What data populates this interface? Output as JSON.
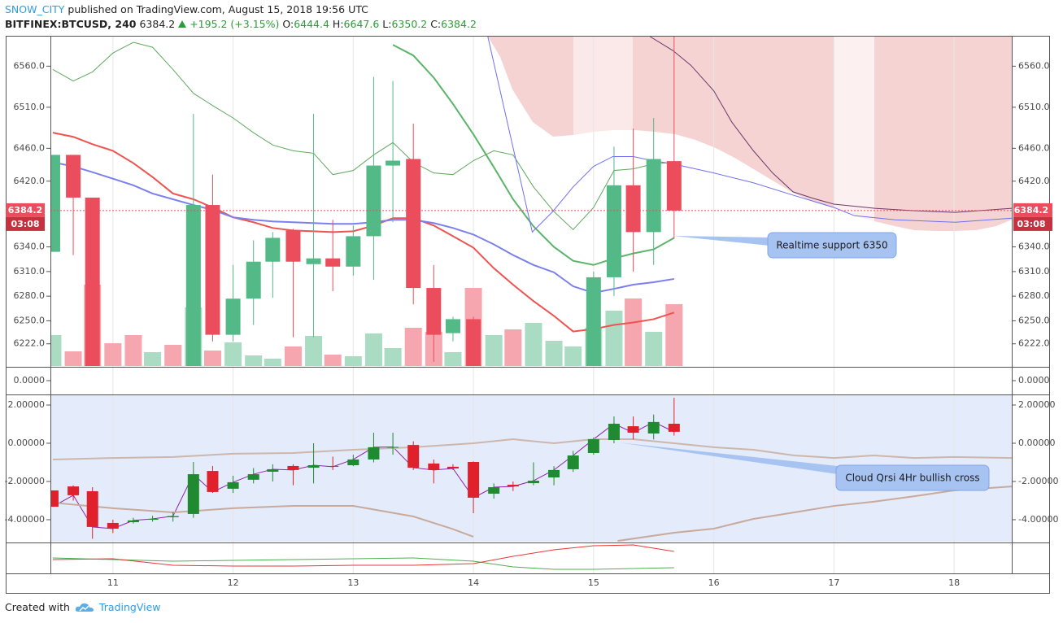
{
  "header": {
    "author": "SNOW_CITY",
    "published": "published on TradingView.com, August 15, 2018 19:56 UTC",
    "symbol": "BITFINEX:BTCUSD, 240",
    "last": "6384.2",
    "change": "+195.2 (+3.15%)",
    "o_label": "O:",
    "o": "6444.4",
    "h_label": "H:",
    "h": "6647.6",
    "l_label": "L:",
    "l": "6350.2",
    "c_label": "C:",
    "c": "6384.2"
  },
  "chart_data": [
    {
      "type": "candlestick",
      "x": [
        10.5,
        10.67,
        10.83,
        11,
        11.17,
        11.33,
        11.5,
        11.67,
        11.83,
        12,
        12.17,
        12.33,
        12.5,
        12.67,
        12.83,
        13,
        13.17,
        13.33,
        13.5,
        13.67,
        13.83,
        14,
        14.17,
        14.33,
        14.5,
        14.67,
        14.83,
        15,
        15.17,
        15.33,
        15.5,
        15.67
      ],
      "open": [
        6334,
        6452,
        6400,
        null,
        null,
        null,
        null,
        6190,
        6391,
        6233,
        6277,
        6322,
        6360,
        6319,
        6326,
        6316,
        6353,
        6439,
        6447,
        6290,
        6235,
        6252,
        null,
        null,
        null,
        null,
        null,
        6190,
        6303,
        6415,
        6358,
        6444.4
      ],
      "high": [
        6452,
        6452,
        6400,
        null,
        null,
        null,
        null,
        6502,
        6428,
        6318,
        6348,
        6358,
        6362,
        6502,
        6373,
        6366,
        6547,
        6542,
        6490,
        6318,
        6255,
        6255,
        null,
        null,
        null,
        null,
        null,
        6310,
        6462,
        6484,
        6497,
        6647.6
      ],
      "low": [
        6334,
        6330,
        6180,
        null,
        null,
        null,
        null,
        6180,
        6225,
        6225,
        6245,
        6278,
        6230,
        6230,
        6286,
        6305,
        6300,
        6370,
        6270,
        6200,
        6225,
        6180,
        null,
        null,
        null,
        null,
        null,
        6180,
        6280,
        6310,
        6318,
        6350.2
      ],
      "close": [
        6452,
        6400,
        6190,
        null,
        null,
        null,
        null,
        6391,
        6233,
        6277,
        6322,
        6351,
        6322,
        6326,
        6316,
        6353,
        6439,
        6445,
        6290,
        6233,
        6252,
        6190,
        null,
        null,
        null,
        null,
        null,
        6303,
        6415,
        6358,
        6447,
        6384.2
      ],
      "up_color": "#53b987",
      "down_color": "#eb4d5c",
      "volume": {
        "values": [
          38,
          18,
          100,
          28,
          38,
          17,
          26,
          72,
          19,
          29,
          13,
          9,
          24,
          37,
          14,
          12,
          40,
          22,
          47,
          42,
          17,
          96,
          38,
          45,
          53,
          31,
          24,
          47,
          68,
          83,
          42,
          76
        ],
        "colors": [
          "#a9dcc3",
          "#f5a6ae",
          "#f5a6ae",
          "#f5a6ae",
          "#f5a6ae",
          "#a9dcc3",
          "#f5a6ae",
          "#a9dcc3",
          "#f5a6ae",
          "#a9dcc3",
          "#a9dcc3",
          "#a9dcc3",
          "#f5a6ae",
          "#a9dcc3",
          "#f5a6ae",
          "#a9dcc3",
          "#a9dcc3",
          "#a9dcc3",
          "#f5a6ae",
          "#f5a6ae",
          "#a9dcc3",
          "#f5a6ae",
          "#a9dcc3",
          "#f5a6ae",
          "#a9dcc3",
          "#a9dcc3",
          "#a9dcc3",
          "#a9dcc3",
          "#a9dcc3",
          "#f5a6ae",
          "#a9dcc3",
          "#f5a6ae"
        ]
      },
      "lines": [
        {
          "color": "#ef5350",
          "width": 2,
          "values": [
            6479,
            6474,
            6465,
            6457,
            6442,
            6425,
            6405,
            6398,
            6388,
            6376,
            6370,
            6363,
            6360,
            6359,
            6358,
            6359,
            6366,
            6375,
            6375,
            6366,
            6353,
            6339,
            6314,
            6294,
            6274,
            6256,
            6237,
            6240,
            6245,
            6248,
            6252,
            6260
          ]
        },
        {
          "color": "#7b7ff0",
          "width": 2,
          "values": [
            6443,
            6438,
            6431,
            6423,
            6415,
            6405,
            6398,
            6391,
            6385,
            6376,
            6373,
            6371,
            6370,
            6369,
            6368,
            6368,
            6370,
            6373,
            6373,
            6369,
            6363,
            6355,
            6343,
            6330,
            6318,
            6309,
            6292,
            6284,
            6289,
            6294,
            6297,
            6301
          ]
        },
        {
          "color": "#5cb46a",
          "width": 2,
          "values": [
            null,
            null,
            null,
            null,
            null,
            null,
            null,
            null,
            null,
            null,
            null,
            null,
            null,
            null,
            null,
            null,
            null,
            6586,
            6573,
            6546,
            6514,
            6477,
            6437,
            6398,
            6365,
            6340,
            6323,
            6318,
            6326,
            6332,
            6337,
            6351
          ]
        },
        {
          "color": "#5fa85f",
          "width": 1,
          "values": [
            6556,
            6542,
            6553,
            6576,
            6589,
            6583,
            6556,
            6527,
            6512,
            6497,
            6479,
            6464,
            6457,
            6454,
            6428,
            6433,
            6452,
            6467,
            6443,
            6430,
            6428,
            6445,
            6457,
            6452,
            6413,
            6383,
            6361,
            6388,
            6433,
            6435,
            6441,
            6443
          ]
        },
        {
          "color": "#6f6ff5",
          "width": 1,
          "x": [
            14.12,
            14.49,
            14.66,
            14.83,
            15,
            15.16,
            15.33,
            15.49,
            15.66,
            16,
            16.33,
            16.66,
            17,
            17.17,
            17.51,
            18.01,
            18.48
          ],
          "values": [
            6596,
            6358,
            6383,
            6413,
            6438,
            6450,
            6450,
            6445,
            6441,
            6430,
            6418,
            6403,
            6388,
            6378,
            6373,
            6370,
            6375
          ]
        },
        {
          "color": "#6b3a6b",
          "width": 1,
          "x": [
            15.47,
            15.66,
            15.81,
            16,
            16.15,
            16.33,
            16.49,
            16.66,
            16.83,
            17,
            17.34,
            17.67,
            18.01,
            18.48
          ],
          "values": [
            6596,
            6579,
            6561,
            6530,
            6492,
            6457,
            6430,
            6407,
            6399,
            6392,
            6387,
            6384,
            6382,
            6387
          ]
        }
      ],
      "xlim": [
        10.48,
        18.48
      ],
      "xticks": [
        11,
        12,
        13,
        14,
        15,
        16,
        17,
        18
      ],
      "xgrid": true,
      "ylim": [
        6195,
        6596
      ],
      "yticks": [
        {
          "value": 6222,
          "label": "6222.0"
        },
        {
          "value": 6250,
          "label": "6250.0"
        },
        {
          "value": 6280,
          "label": "6280.0"
        },
        {
          "value": 6310,
          "label": "6310.0"
        },
        {
          "value": 6340,
          "label": "6340.0"
        },
        {
          "value": 6420,
          "label": "6420.0"
        },
        {
          "value": 6460,
          "label": "6460.0"
        },
        {
          "value": 6510,
          "label": "6510.0"
        },
        {
          "value": 6560,
          "label": "6560.0"
        }
      ],
      "last_price": 6384.2,
      "countdown": "03:08",
      "last_color": "#eb4d5c",
      "annotation": "Realtime support 6350"
    },
    {
      "type": "indicator",
      "ylim": [
        -1,
        1
      ],
      "yticks": [
        {
          "value": 0,
          "label": "0.0000"
        }
      ]
    },
    {
      "type": "candlestick",
      "x": [
        10.5,
        10.67,
        10.83,
        11,
        11.17,
        11.33,
        11.5,
        11.67,
        11.83,
        12,
        12.17,
        12.33,
        12.5,
        12.67,
        12.83,
        13,
        13.17,
        13.33,
        13.5,
        13.67,
        13.83,
        14,
        14.17,
        14.33,
        14.5,
        14.67,
        14.83,
        15,
        15.17,
        15.33,
        15.5,
        15.67
      ],
      "open": [
        -2.47,
        -2.26,
        -2.51,
        -4.17,
        -4.13,
        -4.0,
        -3.87,
        -3.7,
        -1.45,
        -2.38,
        -1.91,
        -1.49,
        -1.19,
        -1.28,
        -1.19,
        -1.15,
        -0.85,
        -0.23,
        -0.09,
        -1.06,
        -1.23,
        -0.98,
        -2.64,
        -2.17,
        -2.09,
        -1.79,
        -1.36,
        -0.51,
        0.17,
        0.89,
        0.51,
        1.02
      ],
      "high": [
        -2.47,
        -2.2,
        -2.3,
        -4.0,
        -3.9,
        -3.8,
        -3.6,
        -0.98,
        -1.19,
        -1.7,
        -1.3,
        -1.1,
        -1.1,
        0,
        -0.7,
        -0.6,
        0.55,
        0.55,
        0.1,
        -0.85,
        -1.1,
        -0.95,
        -2.1,
        -2.0,
        -1.0,
        -1.2,
        -0.4,
        0.3,
        1.4,
        1.4,
        1.5,
        2.38
      ],
      "low": [
        -3.32,
        -3.0,
        -5.0,
        -4.7,
        -4.2,
        -4.1,
        -4.1,
        -3.9,
        -2.6,
        -2.6,
        -2.1,
        -2.0,
        -2.2,
        -2.1,
        -1.4,
        -1.2,
        -1.0,
        -0.6,
        -1.4,
        -2.1,
        -1.4,
        -3.66,
        -2.9,
        -2.5,
        -2.2,
        -2.2,
        -1.5,
        -0.6,
        0.0,
        0.2,
        0.2,
        0.4
      ],
      "close": [
        -3.32,
        -2.72,
        -4.38,
        -4.47,
        -4.04,
        -3.96,
        -3.81,
        -1.62,
        -2.55,
        -2.04,
        -1.62,
        -1.36,
        -1.4,
        -1.15,
        -1.23,
        -0.85,
        -0.21,
        -0.19,
        -1.28,
        -1.4,
        -1.32,
        -2.85,
        -2.3,
        -2.26,
        -1.96,
        -1.4,
        -0.64,
        0.21,
        1.02,
        0.55,
        1.11,
        0.6
      ],
      "up_color": "#1f8a30",
      "down_color": "#e0202b",
      "line_color": "#8e24aa",
      "lines": [
        {
          "color": "#cdb7ad",
          "width": 2,
          "x": [
            10.5,
            11,
            11.5,
            12,
            12.5,
            13,
            13.5,
            14,
            14.33,
            14.67,
            15,
            15.33,
            15.67,
            16,
            16.33,
            16.67,
            17,
            17.33,
            17.67,
            18,
            18.48
          ],
          "values": [
            -0.85,
            -0.77,
            -0.72,
            -0.55,
            -0.51,
            -0.34,
            -0.21,
            0,
            0.21,
            0,
            0.21,
            0.21,
            0,
            -0.21,
            -0.34,
            -0.64,
            -0.77,
            -0.64,
            -0.77,
            -0.72,
            -0.77
          ]
        },
        {
          "color": "#c8aa9c",
          "width": 2,
          "x": [
            10.5,
            11,
            11.5,
            12,
            12.5,
            13,
            13.5,
            13.82,
            14,
            14.12,
            15.2,
            15.67,
            16,
            16.33,
            16.67,
            17,
            17.33,
            17.67,
            18,
            18.48
          ],
          "values": [
            -3.11,
            -3.4,
            -3.62,
            -3.4,
            -3.28,
            -3.28,
            -3.83,
            -4.47,
            -4.89,
            null,
            -5.11,
            -4.68,
            -4.47,
            -3.96,
            -3.62,
            -3.28,
            -3.06,
            -2.77,
            -2.47,
            -2.26
          ]
        }
      ],
      "ylim": [
        -5.15,
        2.51
      ],
      "yticks": [
        {
          "value": 2,
          "label": "2.00000"
        },
        {
          "value": 0,
          "label": "0.00000"
        },
        {
          "value": -2,
          "label": "-2.00000"
        },
        {
          "value": -4,
          "label": "-4.00000"
        }
      ],
      "annotation": "Cloud Qrsi 4Hr bullish cross"
    },
    {
      "type": "line",
      "ylim": [
        0,
        37
      ],
      "lines": [
        {
          "color": "#4caf50",
          "width": 1,
          "x": [
            10.5,
            11,
            11.5,
            12,
            12.5,
            13,
            13.5,
            14,
            14.33,
            14.67,
            15,
            15.33,
            15.67
          ],
          "values": [
            19,
            17,
            15,
            16,
            17,
            18,
            19,
            15,
            8,
            5,
            5,
            6,
            7
          ]
        },
        {
          "color": "#e53935",
          "width": 1,
          "x": [
            10.5,
            11,
            11.5,
            12,
            12.5,
            13,
            13.5,
            14,
            14.33,
            14.67,
            15,
            15.33,
            15.67
          ],
          "values": [
            17,
            18,
            10,
            9,
            9,
            10,
            10,
            12,
            21,
            29,
            34,
            35,
            27
          ]
        }
      ]
    }
  ],
  "footer": {
    "created": "Created with",
    "brand": "TradingView"
  }
}
